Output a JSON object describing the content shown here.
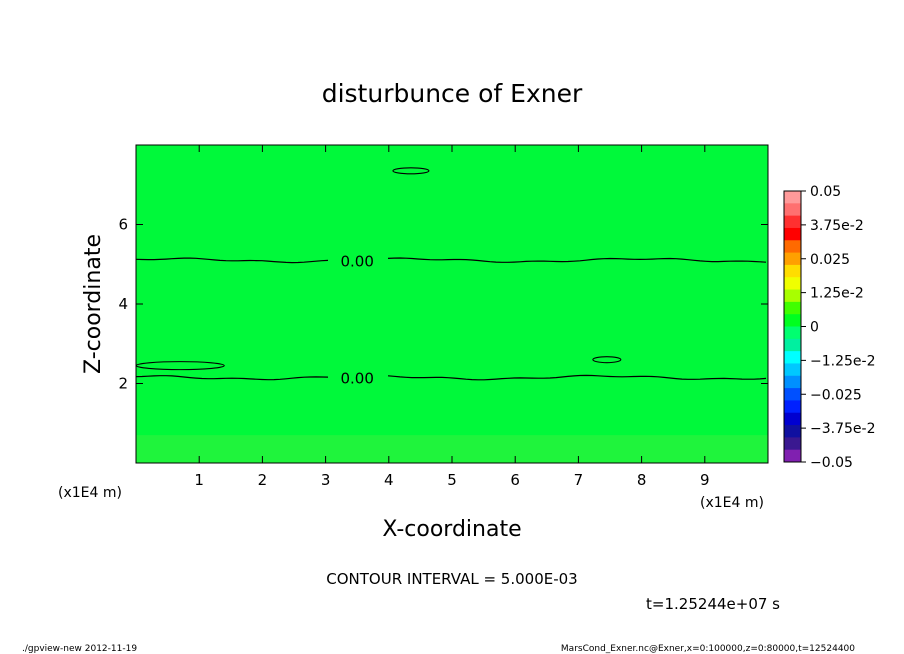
{
  "chart_data": {
    "type": "heatmap",
    "title": "disturbunce of Exner",
    "xlabel": "X-coordinate",
    "ylabel": "Z-coordinate",
    "x_unit": "(x1E4 m)",
    "y_unit": "(x1E4 m)",
    "xlim": [
      0,
      10
    ],
    "ylim": [
      0,
      8
    ],
    "x_ticks": [
      "1",
      "2",
      "3",
      "4",
      "5",
      "6",
      "7",
      "8",
      "9"
    ],
    "y_ticks": [
      "2",
      "4",
      "6"
    ],
    "grid": false,
    "fill_color": "#00f93a",
    "bottom_band": {
      "z_range": [
        0,
        0.7
      ],
      "color": "#1ff43c"
    },
    "contour_levels": [
      {
        "label": "0.00",
        "z": 5.1,
        "label_x": 3.5
      },
      {
        "label": "0.00",
        "z": 2.15,
        "label_x": 3.5
      }
    ],
    "contour_interval": "CONTOUR INTERVAL = 5.000E-03",
    "colorbar": {
      "labels": [
        "0.05",
        "3.75e-2",
        "0.025",
        "1.25e-2",
        "0",
        "−1.25e-2",
        "−0.025",
        "−3.75e-2",
        "−0.05"
      ],
      "colors": [
        "#ff9a9a",
        "#ff7070",
        "#ff3030",
        "#ff0000",
        "#ff6a00",
        "#ffa000",
        "#ffdd00",
        "#f0ff00",
        "#a8ff00",
        "#40ff00",
        "#00ff20",
        "#00ff70",
        "#00f0a0",
        "#00ffff",
        "#00c8ff",
        "#0090ff",
        "#0050ff",
        "#0020ff",
        "#0000d0",
        "#1010a0",
        "#3a1890",
        "#8020b0"
      ],
      "min": -0.05,
      "max": 0.05
    },
    "time": "t=1.25244e+07 s"
  },
  "footer": {
    "left": "./gpview-new  2012-11-19",
    "right": "MarsCond_Exner.nc@Exner,x=0:100000,z=0:80000,t=12524400"
  }
}
